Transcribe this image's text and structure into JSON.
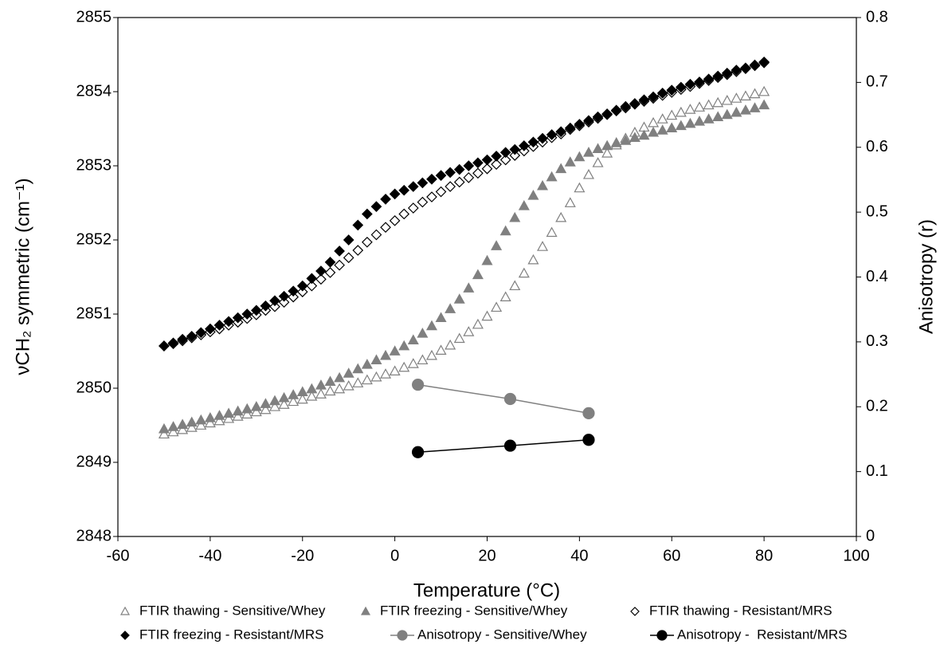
{
  "chart_data": {
    "type": "scatter",
    "x_label": "Temperature (°C)",
    "y_label": "νCH₂ symmetric (cm⁻¹)",
    "y2_label": "Anisotropy (r)",
    "xlim": [
      -60,
      100
    ],
    "xticks": [
      -60,
      -40,
      -20,
      0,
      20,
      40,
      60,
      80,
      100
    ],
    "ylim": [
      2848,
      2855
    ],
    "yticks": [
      2848,
      2849,
      2850,
      2851,
      2852,
      2853,
      2854,
      2855
    ],
    "y2lim": [
      0,
      0.8
    ],
    "y2ticks": [
      0,
      0.1,
      0.2,
      0.3,
      0.4,
      0.5,
      0.6,
      0.7,
      0.8
    ],
    "x": [
      -50,
      -48,
      -46,
      -44,
      -42,
      -40,
      -38,
      -36,
      -34,
      -32,
      -30,
      -28,
      -26,
      -24,
      -22,
      -20,
      -18,
      -16,
      -14,
      -12,
      -10,
      -8,
      -6,
      -4,
      -2,
      0,
      2,
      4,
      6,
      8,
      10,
      12,
      14,
      16,
      18,
      20,
      22,
      24,
      26,
      28,
      30,
      32,
      34,
      36,
      38,
      40,
      42,
      44,
      46,
      48,
      50,
      52,
      54,
      56,
      58,
      60,
      62,
      64,
      66,
      68,
      70,
      72,
      74,
      76,
      78,
      80
    ],
    "series": [
      {
        "name": "FTIR thawing - Sensitive/Whey",
        "color": "#808080",
        "marker": "triangle-open",
        "values": [
          2849.38,
          2849.41,
          2849.44,
          2849.47,
          2849.5,
          2849.53,
          2849.56,
          2849.59,
          2849.62,
          2849.65,
          2849.68,
          2849.71,
          2849.75,
          2849.78,
          2849.82,
          2849.85,
          2849.89,
          2849.92,
          2849.96,
          2849.99,
          2850.03,
          2850.07,
          2850.11,
          2850.15,
          2850.19,
          2850.23,
          2850.28,
          2850.33,
          2850.38,
          2850.44,
          2850.51,
          2850.58,
          2850.67,
          2850.76,
          2850.86,
          2850.97,
          2851.09,
          2851.23,
          2851.38,
          2851.55,
          2851.73,
          2851.91,
          2852.1,
          2852.3,
          2852.5,
          2852.7,
          2852.88,
          2853.04,
          2853.17,
          2853.28,
          2853.37,
          2853.45,
          2853.52,
          2853.58,
          2853.63,
          2853.68,
          2853.72,
          2853.76,
          2853.79,
          2853.82,
          2853.85,
          2853.88,
          2853.91,
          2853.94,
          2853.97,
          2854.0
        ]
      },
      {
        "name": "FTIR freezing - Sensitive/Whey",
        "color": "#808080",
        "marker": "triangle",
        "values": [
          2849.45,
          2849.48,
          2849.51,
          2849.54,
          2849.57,
          2849.6,
          2849.63,
          2849.66,
          2849.69,
          2849.72,
          2849.75,
          2849.79,
          2849.83,
          2849.87,
          2849.91,
          2849.95,
          2849.99,
          2850.04,
          2850.09,
          2850.14,
          2850.2,
          2850.26,
          2850.32,
          2850.38,
          2850.44,
          2850.5,
          2850.57,
          2850.65,
          2850.74,
          2850.84,
          2850.95,
          2851.07,
          2851.2,
          2851.35,
          2851.53,
          2851.72,
          2851.92,
          2852.12,
          2852.3,
          2852.46,
          2852.6,
          2852.73,
          2852.85,
          2852.96,
          2853.05,
          2853.12,
          2853.18,
          2853.23,
          2853.27,
          2853.31,
          2853.34,
          2853.38,
          2853.41,
          2853.45,
          2853.48,
          2853.51,
          2853.54,
          2853.57,
          2853.6,
          2853.63,
          2853.66,
          2853.69,
          2853.72,
          2853.75,
          2853.78,
          2853.82
        ]
      },
      {
        "name": "FTIR thawing - Resistant/MRS",
        "color": "#000000",
        "marker": "diamond-open",
        "values": [
          2850.57,
          2850.6,
          2850.64,
          2850.68,
          2850.72,
          2850.76,
          2850.8,
          2850.85,
          2850.89,
          2850.94,
          2850.99,
          2851.05,
          2851.1,
          2851.16,
          2851.23,
          2851.3,
          2851.38,
          2851.47,
          2851.56,
          2851.66,
          2851.76,
          2851.86,
          2851.97,
          2852.07,
          2852.17,
          2852.26,
          2852.35,
          2852.43,
          2852.51,
          2852.58,
          2852.65,
          2852.72,
          2852.78,
          2852.84,
          2852.9,
          2852.96,
          2853.02,
          2853.08,
          2853.14,
          2853.2,
          2853.26,
          2853.32,
          2853.38,
          2853.43,
          2853.49,
          2853.54,
          2853.59,
          2853.64,
          2853.69,
          2853.74,
          2853.78,
          2853.83,
          2853.87,
          2853.91,
          2853.95,
          2853.99,
          2854.03,
          2854.07,
          2854.11,
          2854.15,
          2854.19,
          2854.23,
          2854.27,
          2854.31,
          2854.35,
          2854.39
        ]
      },
      {
        "name": "FTIR freezing - Resistant/MRS",
        "color": "#000000",
        "marker": "diamond",
        "values": [
          2850.57,
          2850.61,
          2850.66,
          2850.7,
          2850.75,
          2850.8,
          2850.85,
          2850.9,
          2850.95,
          2851.0,
          2851.05,
          2851.11,
          2851.18,
          2851.24,
          2851.31,
          2851.38,
          2851.48,
          2851.58,
          2851.7,
          2851.85,
          2852.0,
          2852.2,
          2852.35,
          2852.45,
          2852.55,
          2852.62,
          2852.67,
          2852.72,
          2852.77,
          2852.82,
          2852.87,
          2852.91,
          2852.95,
          2853.0,
          2853.04,
          2853.08,
          2853.13,
          2853.18,
          2853.22,
          2853.27,
          2853.32,
          2853.37,
          2853.42,
          2853.46,
          2853.51,
          2853.56,
          2853.61,
          2853.66,
          2853.7,
          2853.75,
          2853.8,
          2853.84,
          2853.89,
          2853.93,
          2853.98,
          2854.02,
          2854.06,
          2854.1,
          2854.13,
          2854.17,
          2854.21,
          2854.25,
          2854.29,
          2854.32,
          2854.36,
          2854.4
        ]
      },
      {
        "name": "Anisotropy - Sensitive/Whey",
        "color": "#808080",
        "marker": "circle",
        "line": true,
        "axis": "y2",
        "x": [
          5,
          25,
          42
        ],
        "values": [
          0.234,
          0.212,
          0.19
        ]
      },
      {
        "name": "Anisotropy -  Resistant/MRS",
        "color": "#000000",
        "marker": "circle",
        "line": true,
        "axis": "y2",
        "x": [
          5,
          25,
          42
        ],
        "values": [
          0.13,
          0.14,
          0.149
        ]
      }
    ]
  }
}
